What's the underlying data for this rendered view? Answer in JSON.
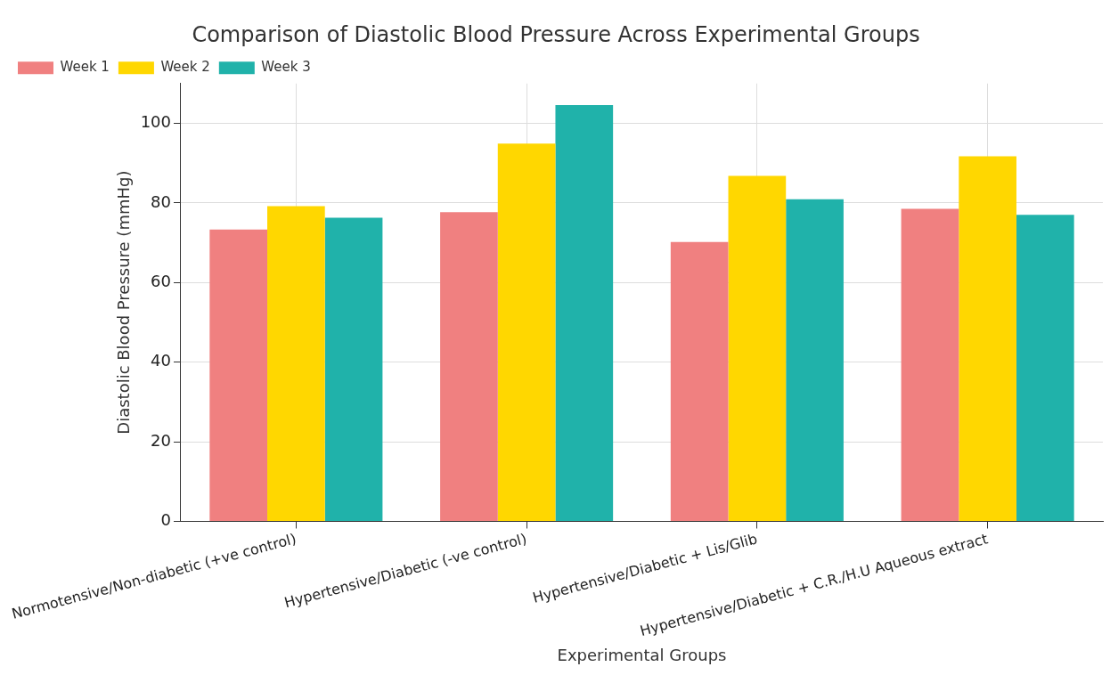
{
  "chart_data": {
    "type": "bar",
    "title": "Comparison of Diastolic Blood Pressure Across Experimental Groups",
    "xlabel": "Experimental Groups",
    "ylabel": "Diastolic Blood Pressure (mmHg)",
    "categories": [
      "Normotensive/Non-diabetic (+ve control)",
      "Hypertensive/Diabetic (-ve control)",
      "Hypertensive/Diabetic + Lis/Glib",
      "Hypertensive/Diabetic + C.R./H.U Aqueous extract"
    ],
    "series": [
      {
        "name": "Week 1",
        "color": "#f08080",
        "values": [
          73.3,
          77.7,
          70.2,
          78.5
        ]
      },
      {
        "name": "Week 2",
        "color": "#ffd700",
        "values": [
          79.2,
          94.9,
          86.8,
          91.7
        ]
      },
      {
        "name": "Week 3",
        "color": "#20b2aa",
        "values": [
          76.3,
          104.6,
          80.9,
          77.0
        ]
      }
    ],
    "ylim": [
      0,
      110
    ],
    "yticks": [
      0,
      20,
      40,
      60,
      80,
      100
    ],
    "grid": true,
    "legend": "top left"
  }
}
